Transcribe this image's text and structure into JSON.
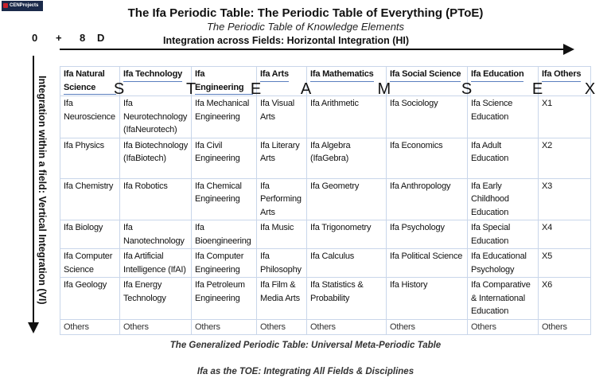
{
  "logo": "CENProjects",
  "title": "The Ifa Periodic Table: The Periodic Table of Everything (PToE)",
  "subtitle": "The Periodic Table of Knowledge Elements",
  "dims": [
    "0",
    "+",
    "8",
    "D"
  ],
  "horizontal_label": "Integration across Fields: Horizontal Integration (HI)",
  "vertical_label": "Integration within a field: Vertical Integration (VI)",
  "columns": [
    {
      "header": "Ifa Natural Science",
      "letter": "S"
    },
    {
      "header": "Ifa Technology",
      "letter": "T"
    },
    {
      "header": "Ifa Engineering",
      "letter": "E"
    },
    {
      "header": "Ifa Arts",
      "letter": "A"
    },
    {
      "header": "Ifa Mathematics",
      "letter": "M"
    },
    {
      "header": "Ifa Social Science",
      "letter": "S"
    },
    {
      "header": "Ifa Education",
      "letter": "E"
    },
    {
      "header": "Ifa Others",
      "letter": "X"
    }
  ],
  "rows": [
    [
      "Ifa Neuroscience",
      "Ifa Neurotechnology (IfaNeurotech)",
      "Ifa Mechanical Engineering",
      "Ifa Visual Arts",
      "Ifa Arithmetic",
      "Ifa Sociology",
      "Ifa Science Education",
      "X1"
    ],
    [
      "Ifa Physics",
      "Ifa Biotechnology (IfaBiotech)",
      "Ifa Civil Engineering",
      "Ifa Literary Arts",
      "Ifa Algebra (IfaGebra)",
      "Ifa Economics",
      "Ifa Adult Education",
      "X2"
    ],
    [
      "Ifa Chemistry",
      "Ifa Robotics",
      "Ifa Chemical Engineering",
      "Ifa Performing Arts",
      "Ifa Geometry",
      "Ifa Anthropology",
      "Ifa Early Childhood Education",
      "X3"
    ],
    [
      "Ifa Biology",
      "Ifa Nanotechnology",
      "Ifa Bioengineering",
      "Ifa Music",
      "Ifa Trigonometry",
      "Ifa Psychology",
      "Ifa Special Education",
      "X4"
    ],
    [
      "Ifa Computer Science",
      "Ifa Artificial Intelligence (IfAI)",
      "Ifa Computer Engineering",
      "Ifa Philosophy",
      "Ifa Calculus",
      "Ifa Political Science",
      "Ifa Educational Psychology",
      "X5"
    ],
    [
      "Ifa Geology",
      "Ifa Energy Technology",
      "Ifa Petroleum Engineering",
      "Ifa Film & Media Arts",
      "Ifa Statistics & Probability",
      "Ifa History",
      "Ifa Comparative & International Education",
      "X6"
    ],
    [
      "Others",
      "Others",
      "Others",
      "Others",
      "Others",
      "Others",
      "Others",
      "Others"
    ]
  ],
  "caption1": "The Generalized Periodic Table: Universal Meta-Periodic Table",
  "caption2": "Ifa as the TOE: Integrating All Fields & Disciplines"
}
